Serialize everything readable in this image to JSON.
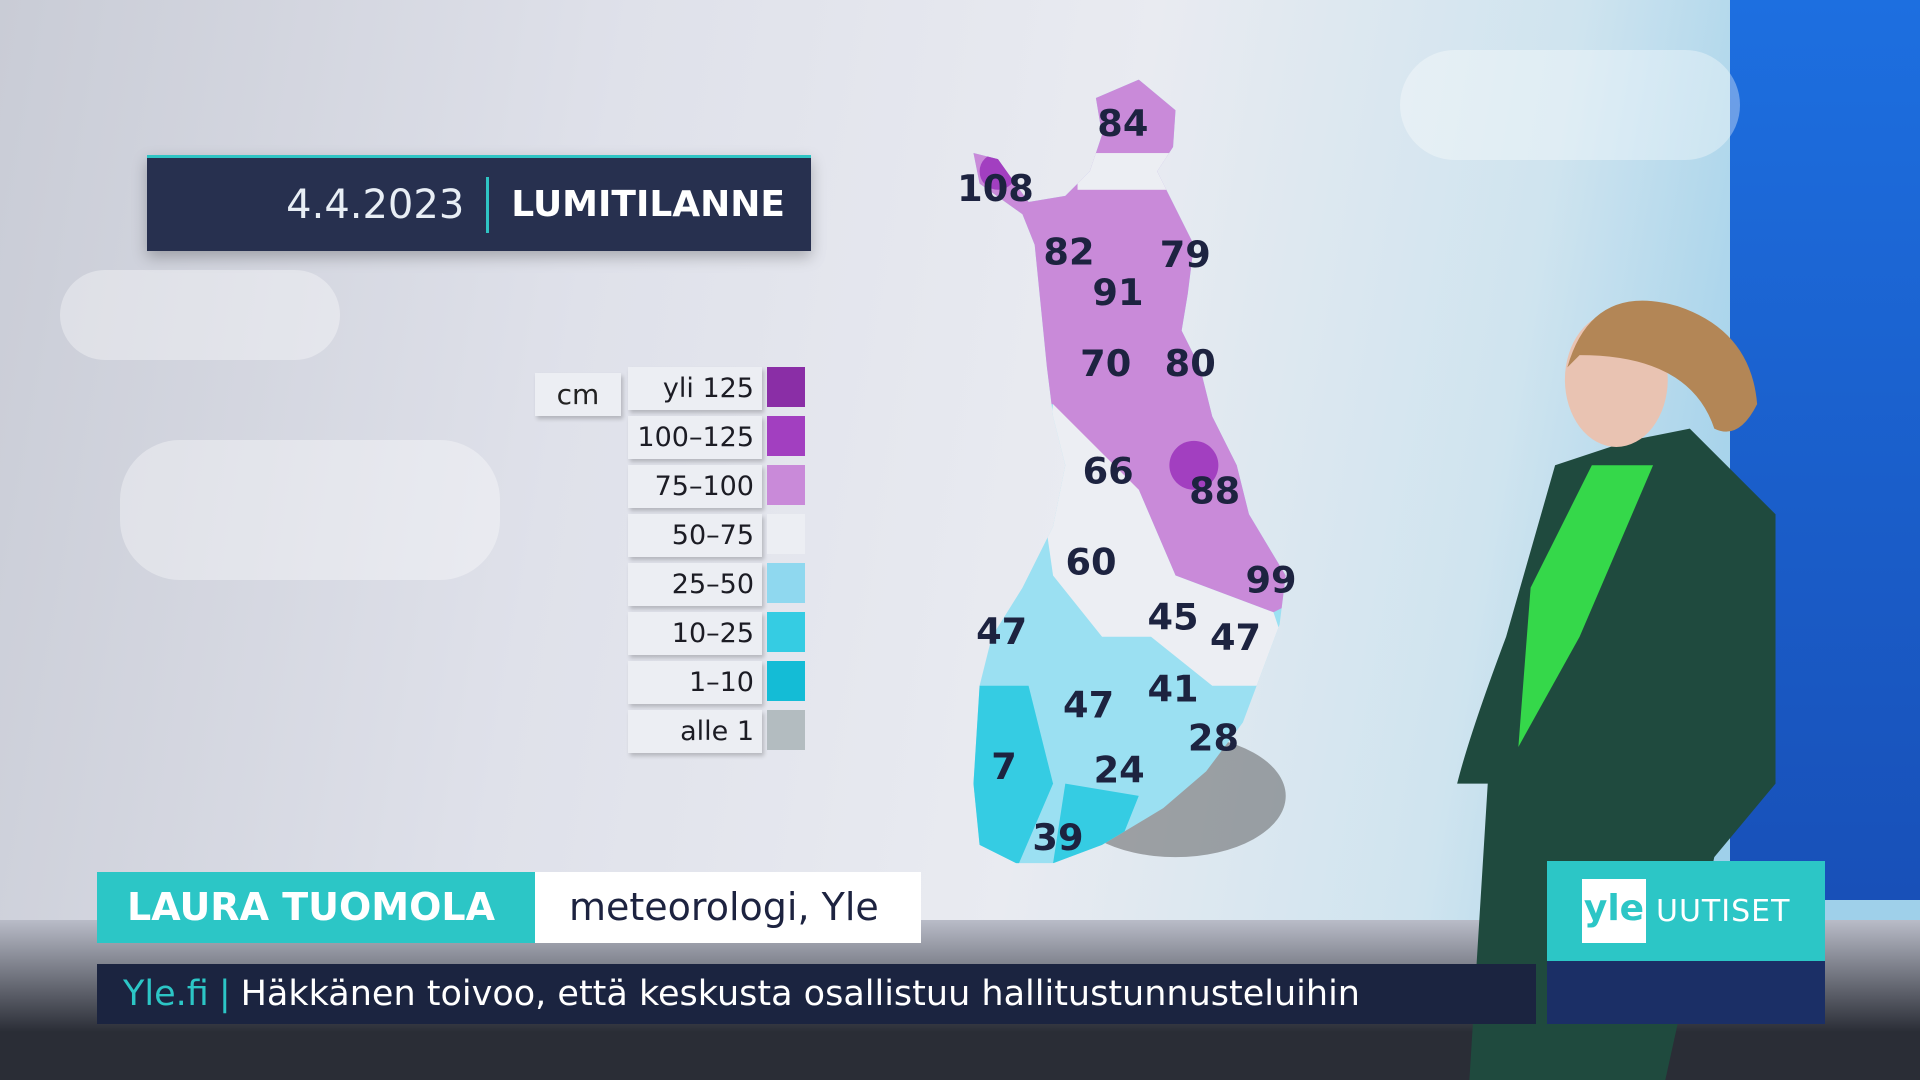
{
  "title_bar": {
    "date": "4.4.2023",
    "title": "LUMITILANNE"
  },
  "legend": {
    "unit": "cm",
    "items": [
      {
        "label": "yli 125",
        "color": "#8a2ea6"
      },
      {
        "label": "100–125",
        "color": "#a23fc0"
      },
      {
        "label": "75–100",
        "color": "#c98ad9"
      },
      {
        "label": "50–75",
        "color": "#eceef3"
      },
      {
        "label": "25–50",
        "color": "#8fd8ef"
      },
      {
        "label": "10–25",
        "color": "#35cce3"
      },
      {
        "label": "1–10",
        "color": "#14bcd6"
      },
      {
        "label": "alle 1",
        "color": "#b3bcc0"
      }
    ]
  },
  "map": {
    "snow_depths": [
      "84",
      "108",
      "82",
      "79",
      "91",
      "70",
      "80",
      "66",
      "88",
      "60",
      "99",
      "45",
      "47",
      "47",
      "41",
      "47",
      "28",
      "7",
      "24",
      "39"
    ]
  },
  "lower_third": {
    "name": "LAURA TUOMOLA",
    "role": "meteorologi, Yle"
  },
  "ticker": {
    "source": "Yle.fi",
    "separator": "|",
    "headline": "Häkkänen toivoo, että keskusta osallistuu hallitustunnusteluihin"
  },
  "logo": {
    "yle": "yle",
    "uutiset": "UUTISET"
  }
}
